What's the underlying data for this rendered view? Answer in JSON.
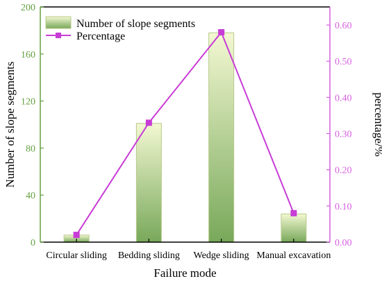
{
  "chart_data": {
    "type": "bar",
    "categories": [
      "Circular sliding",
      "Bedding sliding",
      "Wedge sliding",
      "Manual excavation"
    ],
    "series": [
      {
        "name": "Number of slope segments",
        "type": "bar",
        "axis": "left",
        "values": [
          6,
          101,
          178,
          24
        ]
      },
      {
        "name": "Percentage",
        "type": "line",
        "axis": "right",
        "values": [
          0.02,
          0.33,
          0.58,
          0.08
        ]
      }
    ],
    "title": "",
    "xlabel": "Failure mode",
    "ylabel": "Number of slope segments",
    "y2label": "percentage/%",
    "ylim": [
      0,
      200
    ],
    "y2lim": [
      0,
      0.65
    ],
    "yticks": [
      "0",
      "40",
      "80",
      "120",
      "160",
      "200"
    ],
    "y2ticks": [
      "0.00",
      "0.10",
      "0.20",
      "0.30",
      "0.40",
      "0.50",
      "0.60"
    ],
    "legend": "top-left",
    "grid": false,
    "colors": {
      "bar_top": "#f3f8d2",
      "bar_bottom": "#78a85a",
      "bar_edge": "#b9c98a",
      "line": "#c83cd6",
      "left_axis": "#63a040",
      "right_axis": "#d65fe0",
      "frame": "#000000"
    }
  }
}
